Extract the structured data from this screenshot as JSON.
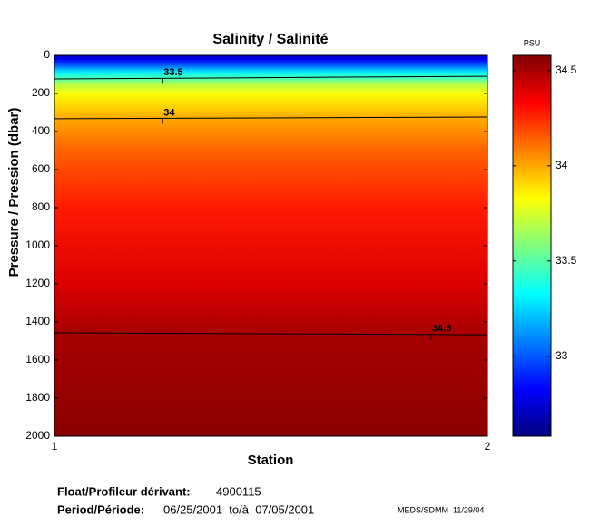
{
  "chart_data": {
    "type": "contour",
    "title": "Salinity / Salinité",
    "xlabel": "Station",
    "ylabel": "Pressure / Pression (dbar)",
    "x": [
      1,
      2
    ],
    "xlim": [
      1,
      2
    ],
    "xticks": [
      1,
      2
    ],
    "ylim": [
      0,
      2000
    ],
    "y_inverted": true,
    "yticks": [
      0,
      200,
      400,
      600,
      800,
      1000,
      1200,
      1400,
      1600,
      1800,
      2000
    ],
    "profile": {
      "pressure": [
        0,
        20,
        50,
        80,
        100,
        124,
        150,
        200,
        333,
        500,
        800,
        1200,
        1462,
        2000
      ],
      "salinity": [
        32.7,
        32.8,
        33.0,
        33.25,
        33.38,
        33.5,
        33.68,
        33.82,
        34.0,
        34.14,
        34.28,
        34.4,
        34.5,
        34.56
      ]
    },
    "contours": [
      {
        "level": 33.5,
        "pressure": [
          124,
          110
        ]
      },
      {
        "level": 34,
        "pressure": [
          333,
          324
        ]
      },
      {
        "level": 34.5,
        "pressure": [
          1457,
          1467
        ]
      }
    ],
    "colorbar": {
      "label": "PSU",
      "clim": [
        32.58,
        34.58
      ],
      "ticks": [
        33,
        33.5,
        34,
        34.5
      ],
      "colormap": "jet"
    }
  },
  "footer": {
    "float_label": "Float/Profileur dérivant:",
    "float_id": "4900115",
    "period_label": "Period/Période:",
    "period": "06/25/2001  to/à  07/05/2001",
    "credit": "MEDS/SDMM  11/29/04"
  }
}
